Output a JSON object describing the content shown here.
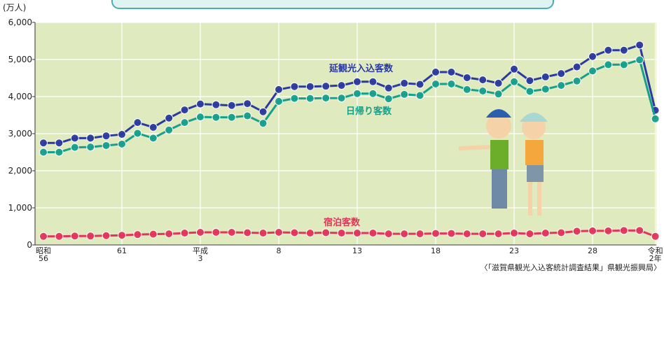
{
  "chart_data": {
    "type": "line",
    "y_label": "(万人)",
    "source": "〈「滋賀県観光入込客統計調査結果」県観光振興局〉",
    "categories": [
      "昭和\n56",
      null,
      null,
      null,
      null,
      "61",
      null,
      null,
      null,
      null,
      "平成\n3",
      null,
      null,
      null,
      null,
      "8",
      null,
      null,
      null,
      null,
      "13",
      null,
      null,
      null,
      null,
      "18",
      null,
      null,
      null,
      null,
      "23",
      null,
      null,
      null,
      null,
      "28",
      null,
      null,
      null,
      "令和\n2年"
    ],
    "ylim": [
      0,
      6000
    ],
    "yticks": [
      {
        "value": 0,
        "label": "0"
      },
      {
        "value": 1000,
        "label": "1,000"
      },
      {
        "value": 2000,
        "label": "2,000"
      },
      {
        "value": 3000,
        "label": "3,000"
      },
      {
        "value": 4000,
        "label": "4,000"
      },
      {
        "value": 5000,
        "label": "5,000"
      },
      {
        "value": 6000,
        "label": "6,000"
      }
    ],
    "grid": true,
    "series": [
      {
        "name": "延観光入込客数",
        "color": "#2b3a9e",
        "values": [
          2750,
          2750,
          2880,
          2880,
          2940,
          2980,
          3300,
          3170,
          3420,
          3640,
          3800,
          3780,
          3760,
          3810,
          3590,
          4190,
          4270,
          4270,
          4280,
          4300,
          4400,
          4400,
          4230,
          4360,
          4330,
          4660,
          4660,
          4510,
          4450,
          4360,
          4740,
          4430,
          4530,
          4620,
          4800,
          5080,
          5250,
          5250,
          5390,
          3630
        ]
      },
      {
        "name": "日帰り客数",
        "color": "#16a08c",
        "values": [
          2500,
          2500,
          2630,
          2640,
          2680,
          2720,
          3010,
          2880,
          3100,
          3300,
          3450,
          3440,
          3440,
          3480,
          3280,
          3870,
          3950,
          3950,
          3960,
          3960,
          4080,
          4080,
          3940,
          4060,
          4030,
          4340,
          4340,
          4190,
          4150,
          4070,
          4400,
          4140,
          4200,
          4300,
          4420,
          4690,
          4860,
          4860,
          4990,
          3400
        ]
      },
      {
        "name": "宿泊客数",
        "color": "#e2355a",
        "values": [
          230,
          230,
          240,
          240,
          250,
          260,
          280,
          290,
          300,
          320,
          340,
          340,
          340,
          330,
          320,
          340,
          330,
          320,
          330,
          320,
          320,
          320,
          300,
          300,
          300,
          310,
          310,
          300,
          300,
          300,
          320,
          300,
          320,
          330,
          370,
          380,
          380,
          390,
          390,
          230
        ]
      }
    ]
  }
}
